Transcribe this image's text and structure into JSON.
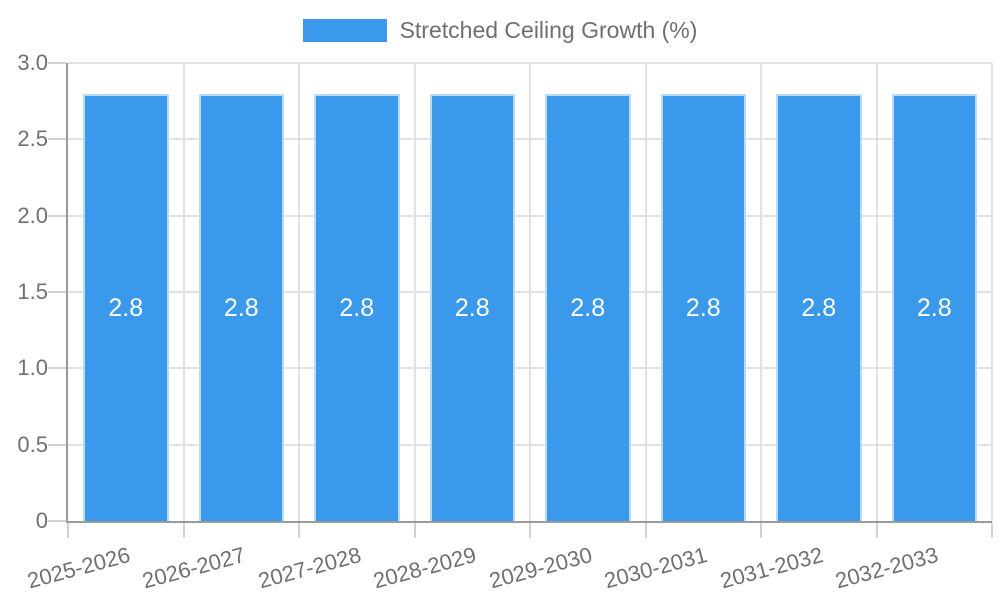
{
  "legend": {
    "label": "Stretched Ceiling Growth (%)"
  },
  "chart_data": {
    "type": "bar",
    "title": "",
    "xlabel": "",
    "ylabel": "",
    "categories": [
      "2025-2026",
      "2026-2027",
      "2027-2028",
      "2028-2029",
      "2029-2030",
      "2030-2031",
      "2031-2032",
      "2032-2033"
    ],
    "series": [
      {
        "name": "Stretched Ceiling Growth (%)",
        "values": [
          2.8,
          2.8,
          2.8,
          2.8,
          2.8,
          2.8,
          2.8,
          2.8
        ],
        "color": "#3b99ec"
      }
    ],
    "bar_value_labels": [
      "2.8",
      "2.8",
      "2.8",
      "2.8",
      "2.8",
      "2.8",
      "2.8",
      "2.8"
    ],
    "ylim": [
      0,
      3
    ],
    "yticks": [
      {
        "label": "0",
        "value": 0
      },
      {
        "label": "0.5",
        "value": 0.5
      },
      {
        "label": "1.0",
        "value": 1
      },
      {
        "label": "1.5",
        "value": 1.5
      },
      {
        "label": "2.0",
        "value": 2
      },
      {
        "label": "2.5",
        "value": 2.5
      },
      {
        "label": "3.0",
        "value": 3
      }
    ],
    "grid": true,
    "legend_position": "top"
  },
  "colors": {
    "bar_fill": "#3b99ec",
    "bar_border": "#b9dbf7",
    "bar_value_text": "#ffffff",
    "axis_line": "#9b9b9b",
    "gridline": "#e2e2e2",
    "tick": "#d2d2d2",
    "axis_text": "#707070",
    "legend_text": "#6f6f6f",
    "background": "#ffffff"
  }
}
